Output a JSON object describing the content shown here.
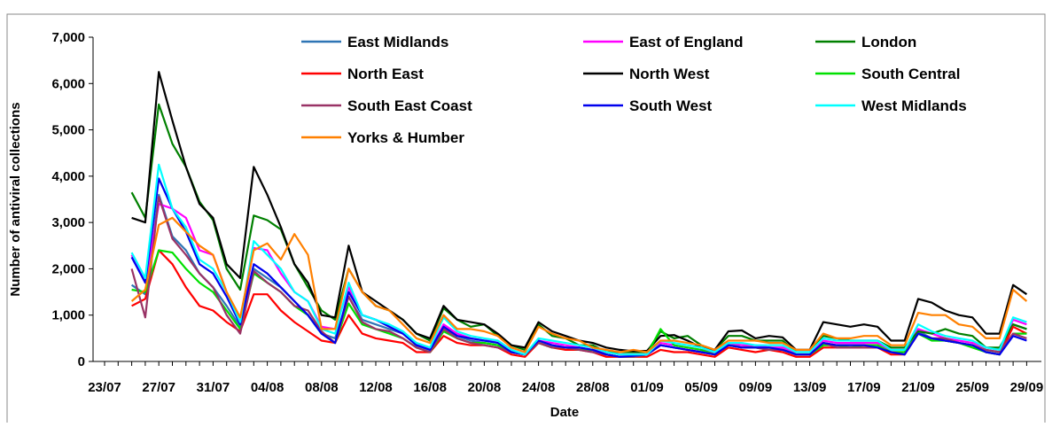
{
  "chart_data": {
    "type": "line",
    "x_label": "Date",
    "y_label": "Number of antiviral collections",
    "categories": [
      "23/07",
      null,
      null,
      null,
      "27/07",
      null,
      null,
      null,
      "31/07",
      null,
      null,
      null,
      "04/08",
      null,
      null,
      null,
      "08/08",
      null,
      null,
      null,
      "12/08",
      null,
      null,
      null,
      "16/08",
      null,
      null,
      null,
      "20/08",
      null,
      null,
      null,
      "24/08",
      null,
      null,
      null,
      "28/08",
      null,
      null,
      null,
      "01/09",
      null,
      null,
      null,
      "05/09",
      null,
      null,
      null,
      "09/09",
      null,
      null,
      null,
      "13/09",
      null,
      null,
      null,
      "17/09",
      null,
      null,
      null,
      "21/09",
      null,
      null,
      null,
      "25/09",
      null,
      null,
      null,
      "29/09"
    ],
    "ylim": [
      0,
      7000
    ],
    "yticks": [
      0,
      {
        "value": 1000,
        "label": "1,000"
      },
      {
        "value": 2000,
        "label": "2,000"
      },
      {
        "value": 3000,
        "label": "3,000"
      },
      {
        "value": 4000,
        "label": "4,000"
      },
      {
        "value": 5000,
        "label": "5,000"
      },
      {
        "value": 6000,
        "label": "6,000"
      },
      {
        "value": 7000,
        "label": "7,000"
      }
    ],
    "grid": false,
    "legend": "top",
    "series": [
      {
        "name": "East Midlands",
        "color": "#2f75b5",
        "values": [
          null,
          null,
          1650,
          1450,
          3600,
          2700,
          2400,
          1900,
          1600,
          1200,
          750,
          2000,
          1800,
          1600,
          1300,
          1000,
          600,
          500,
          1400,
          900,
          800,
          700,
          600,
          350,
          250,
          750,
          550,
          450,
          400,
          350,
          200,
          150,
          450,
          350,
          300,
          300,
          250,
          150,
          100,
          120,
          150,
          350,
          300,
          250,
          200,
          150,
          350,
          350,
          300,
          300,
          300,
          150,
          150,
          400,
          350,
          350,
          350,
          350,
          200,
          200,
          650,
          500,
          450,
          400,
          350,
          250,
          200,
          800,
          700
        ]
      },
      {
        "name": "East of England",
        "color": "#ff00ff",
        "values": [
          null,
          null,
          2300,
          1700,
          3400,
          3300,
          3100,
          2400,
          2300,
          1500,
          800,
          2450,
          2400,
          1900,
          1500,
          1300,
          750,
          700,
          1600,
          1000,
          900,
          750,
          600,
          400,
          250,
          800,
          600,
          500,
          450,
          450,
          250,
          150,
          450,
          400,
          350,
          300,
          250,
          200,
          150,
          150,
          150,
          400,
          350,
          300,
          250,
          200,
          400,
          350,
          350,
          300,
          300,
          200,
          200,
          450,
          400,
          400,
          400,
          400,
          250,
          250,
          700,
          600,
          500,
          450,
          400,
          300,
          250,
          900,
          800
        ]
      },
      {
        "name": "London",
        "color": "#008000",
        "values": [
          null,
          null,
          3650,
          3100,
          5550,
          4700,
          4200,
          3450,
          3050,
          2000,
          1550,
          3150,
          3050,
          2850,
          2100,
          1600,
          1100,
          900,
          2000,
          1500,
          1200,
          1100,
          900,
          600,
          450,
          1150,
          900,
          750,
          800,
          550,
          350,
          250,
          800,
          550,
          500,
          350,
          350,
          200,
          200,
          200,
          200,
          650,
          500,
          550,
          350,
          250,
          550,
          550,
          450,
          450,
          450,
          200,
          200,
          550,
          500,
          450,
          450,
          450,
          300,
          300,
          650,
          600,
          700,
          600,
          550,
          300,
          300,
          800,
          700
        ]
      },
      {
        "name": "North East",
        "color": "#ff0000",
        "values": [
          null,
          null,
          1200,
          1350,
          2400,
          2100,
          1600,
          1200,
          1100,
          850,
          650,
          1450,
          1450,
          1100,
          850,
          650,
          450,
          400,
          1000,
          600,
          500,
          450,
          400,
          200,
          200,
          550,
          400,
          350,
          350,
          300,
          150,
          100,
          400,
          300,
          250,
          250,
          200,
          100,
          100,
          100,
          100,
          250,
          200,
          200,
          150,
          100,
          300,
          250,
          200,
          250,
          200,
          100,
          100,
          300,
          300,
          300,
          300,
          300,
          150,
          150,
          600,
          500,
          450,
          400,
          350,
          200,
          150,
          750,
          600
        ]
      },
      {
        "name": "North West",
        "color": "#000000",
        "values": [
          null,
          null,
          3100,
          3000,
          6250,
          5200,
          4200,
          3400,
          3100,
          2100,
          1800,
          4200,
          3600,
          2900,
          2100,
          1700,
          1000,
          950,
          2500,
          1500,
          1300,
          1100,
          900,
          600,
          500,
          1200,
          900,
          850,
          800,
          600,
          350,
          300,
          850,
          650,
          550,
          450,
          400,
          300,
          250,
          220,
          230,
          550,
          570,
          450,
          300,
          250,
          650,
          670,
          500,
          550,
          520,
          250,
          250,
          850,
          800,
          750,
          800,
          750,
          450,
          450,
          1350,
          1270,
          1100,
          1000,
          950,
          600,
          600,
          1650,
          1450
        ]
      },
      {
        "name": "South Central",
        "color": "#00e000",
        "values": [
          null,
          null,
          1550,
          1500,
          2400,
          2350,
          2000,
          1700,
          1500,
          1100,
          700,
          1900,
          1700,
          1500,
          1200,
          1000,
          600,
          400,
          1250,
          800,
          700,
          600,
          500,
          300,
          200,
          650,
          500,
          400,
          400,
          350,
          200,
          150,
          400,
          300,
          300,
          250,
          250,
          150,
          100,
          100,
          150,
          700,
          350,
          300,
          250,
          150,
          350,
          300,
          300,
          250,
          250,
          150,
          150,
          350,
          350,
          300,
          350,
          350,
          200,
          200,
          600,
          450,
          450,
          400,
          300,
          200,
          150,
          600,
          600
        ]
      },
      {
        "name": "South East Coast",
        "color": "#993366",
        "values": [
          null,
          null,
          2000,
          950,
          3550,
          2650,
          2300,
          1900,
          1600,
          1000,
          600,
          1950,
          1700,
          1500,
          1200,
          1100,
          650,
          400,
          1400,
          850,
          700,
          650,
          500,
          300,
          200,
          700,
          500,
          400,
          350,
          300,
          200,
          150,
          400,
          300,
          300,
          250,
          200,
          150,
          100,
          100,
          150,
          350,
          300,
          250,
          200,
          150,
          350,
          300,
          300,
          250,
          250,
          150,
          150,
          400,
          300,
          300,
          300,
          300,
          200,
          150,
          600,
          500,
          500,
          400,
          350,
          250,
          200,
          600,
          500
        ]
      },
      {
        "name": "South West",
        "color": "#0000ee",
        "values": [
          null,
          null,
          2250,
          1700,
          3950,
          3300,
          2800,
          2100,
          1900,
          1400,
          800,
          2100,
          1900,
          1600,
          1300,
          1000,
          600,
          400,
          1500,
          1000,
          900,
          750,
          600,
          350,
          250,
          750,
          550,
          500,
          450,
          400,
          200,
          150,
          450,
          350,
          300,
          300,
          250,
          150,
          100,
          120,
          150,
          350,
          300,
          250,
          200,
          150,
          350,
          300,
          300,
          300,
          250,
          150,
          150,
          400,
          350,
          350,
          350,
          300,
          200,
          150,
          600,
          500,
          450,
          400,
          350,
          200,
          150,
          550,
          450
        ]
      },
      {
        "name": "West Midlands",
        "color": "#00ffff",
        "values": [
          null,
          null,
          2350,
          1800,
          4250,
          3300,
          2900,
          2200,
          2000,
          1500,
          850,
          2600,
          2300,
          2000,
          1500,
          1300,
          700,
          600,
          1700,
          1000,
          900,
          800,
          650,
          400,
          300,
          950,
          650,
          550,
          500,
          450,
          250,
          150,
          500,
          450,
          400,
          350,
          300,
          200,
          150,
          150,
          150,
          450,
          400,
          350,
          300,
          200,
          400,
          400,
          350,
          350,
          350,
          200,
          200,
          500,
          450,
          450,
          450,
          450,
          250,
          250,
          800,
          650,
          550,
          500,
          450,
          300,
          250,
          950,
          850
        ]
      },
      {
        "name": "Yorks & Humber",
        "color": "#ff8000",
        "values": [
          null,
          null,
          1300,
          1550,
          2950,
          3100,
          2800,
          2500,
          2300,
          1500,
          950,
          2400,
          2550,
          2200,
          2750,
          2300,
          700,
          700,
          2000,
          1500,
          1200,
          1100,
          800,
          500,
          400,
          1000,
          700,
          700,
          650,
          550,
          300,
          200,
          750,
          600,
          500,
          450,
          300,
          250,
          200,
          250,
          200,
          450,
          450,
          400,
          350,
          250,
          450,
          450,
          450,
          400,
          400,
          250,
          250,
          600,
          500,
          500,
          550,
          550,
          350,
          350,
          1050,
          1000,
          1000,
          800,
          750,
          500,
          500,
          1550,
          1300
        ]
      }
    ]
  }
}
